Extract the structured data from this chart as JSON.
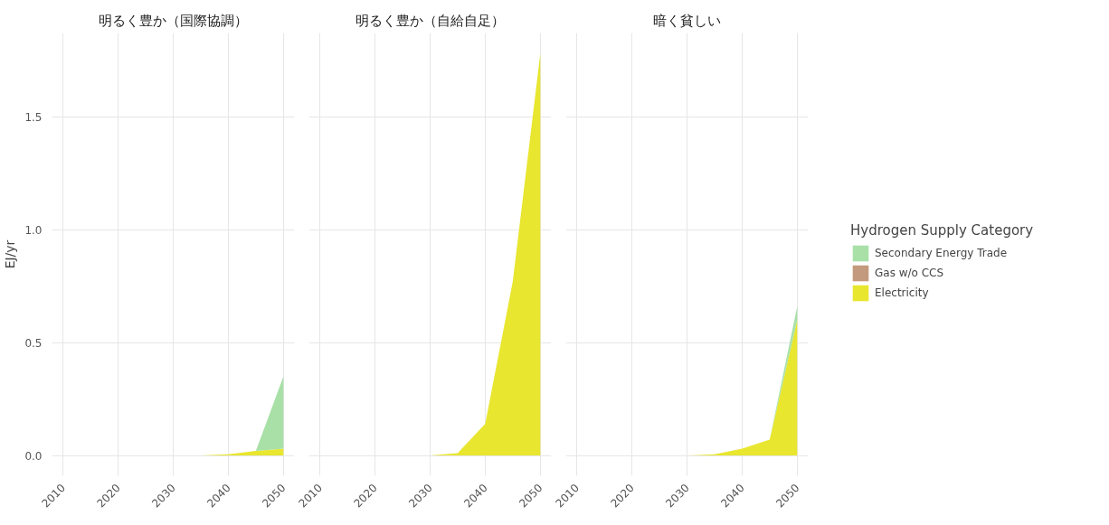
{
  "chart_data": [
    {
      "type": "area",
      "stacked": true,
      "title": "明るく豊か（国際協調）",
      "ylabel": "EJ/yr",
      "x": [
        2010,
        2015,
        2020,
        2025,
        2030,
        2035,
        2040,
        2045,
        2050
      ],
      "xlim": [
        2008,
        2052
      ],
      "ylim": [
        -0.09,
        1.87
      ],
      "xticks": [
        2010,
        2020,
        2030,
        2040,
        2050
      ],
      "yticks": [
        {
          "value": 0,
          "label": "0.0"
        },
        {
          "value": 0.5,
          "label": "0.5"
        },
        {
          "value": 1,
          "label": "1.0"
        },
        {
          "value": 1.5,
          "label": "1.5"
        }
      ],
      "grid": true,
      "series": [
        {
          "color": "#e8e62f",
          "values": [
            0,
            0,
            0,
            0,
            0,
            0,
            0.005,
            0.02,
            0.03
          ]
        },
        {
          "color": "#c49a7e",
          "values": [
            null,
            null,
            null,
            null,
            null,
            null,
            null,
            null,
            null
          ]
        },
        {
          "color": "#a8e0a8",
          "values": [
            0,
            0,
            0,
            0,
            0,
            0,
            0,
            0,
            0.32
          ]
        }
      ]
    },
    {
      "type": "area",
      "stacked": true,
      "title": "明るく豊か（自給自足）",
      "x": [
        2010,
        2015,
        2020,
        2025,
        2030,
        2035,
        2040,
        2045,
        2050
      ],
      "xlim": [
        2008,
        2052
      ],
      "ylim": [
        -0.09,
        1.87
      ],
      "xticks": [
        2010,
        2020,
        2030,
        2040,
        2050
      ],
      "yticks": [
        0,
        0.5,
        1,
        1.5
      ],
      "grid": true,
      "tick_labels": "x",
      "series": [
        {
          "color": "#e8e62f",
          "values": [
            0,
            0,
            0,
            0,
            0,
            0.01,
            0.14,
            0.77,
            1.78
          ]
        },
        {
          "color": "#c49a7e",
          "values": [
            null,
            null,
            null,
            null,
            null,
            null,
            null,
            null,
            null
          ]
        },
        {
          "color": "#a8e0a8",
          "values": [
            null,
            null,
            null,
            null,
            null,
            null,
            null,
            null,
            null
          ]
        }
      ]
    },
    {
      "type": "area",
      "stacked": true,
      "title": "暗く貧しい",
      "legend_title": "Hydrogen Supply Category",
      "x": [
        2010,
        2015,
        2020,
        2025,
        2030,
        2035,
        2040,
        2045,
        2050
      ],
      "xlim": [
        2008,
        2052
      ],
      "ylim": [
        -0.09,
        1.87
      ],
      "xticks": [
        2010,
        2020,
        2030,
        2040,
        2050
      ],
      "yticks": [
        0,
        0.5,
        1,
        1.5
      ],
      "grid": true,
      "legend": "right",
      "tick_labels": "x",
      "series": [
        {
          "name": "Electricity",
          "color": "#e8e62f",
          "values": [
            0,
            0,
            0,
            0,
            0,
            0.005,
            0.03,
            0.07,
            0.6
          ]
        },
        {
          "name": "Gas w/o CCS",
          "color": "#c49a7e",
          "values": [
            null,
            null,
            null,
            null,
            null,
            null,
            null,
            null,
            null
          ]
        },
        {
          "name": "Secondary Energy Trade",
          "color": "#a8e0a8",
          "values": [
            0,
            0,
            0,
            0,
            0,
            0,
            0,
            0,
            0.06
          ]
        }
      ]
    }
  ]
}
